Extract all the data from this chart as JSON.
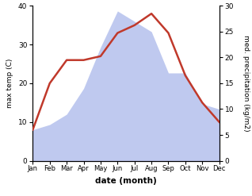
{
  "months": [
    "Jan",
    "Feb",
    "Mar",
    "Apr",
    "May",
    "Jun",
    "Jul",
    "Aug",
    "Sep",
    "Oct",
    "Nov",
    "Dec"
  ],
  "temp": [
    8,
    20,
    26,
    26,
    27,
    33,
    35,
    38,
    33,
    22,
    15,
    10
  ],
  "precip": [
    6,
    7,
    9,
    14,
    22,
    29,
    27,
    25,
    17,
    17,
    11,
    10
  ],
  "temp_color": "#c0392b",
  "precip_color": "#b8c4ee",
  "temp_ylim": [
    0,
    40
  ],
  "precip_ylim": [
    0,
    30
  ],
  "temp_yticks": [
    0,
    10,
    20,
    30,
    40
  ],
  "precip_yticks": [
    0,
    5,
    10,
    15,
    20,
    25,
    30
  ],
  "ylabel_left": "max temp (C)",
  "ylabel_right": "med. precipitation (kg/m2)",
  "xlabel": "date (month)",
  "fig_width": 3.18,
  "fig_height": 2.47,
  "dpi": 100
}
